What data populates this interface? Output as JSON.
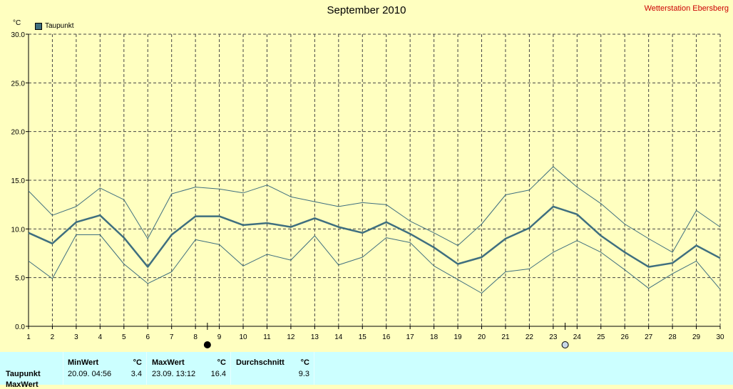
{
  "header": {
    "title": "September 2010",
    "station": "Wetterstation Ebersberg",
    "unit": "°C",
    "legend": "Taupunkt"
  },
  "chart_data": {
    "type": "line",
    "title": "September 2010",
    "ylabel": "°C",
    "ylim": [
      0,
      30
    ],
    "yticks": [
      "0.0",
      "5.0",
      "10.0",
      "15.0",
      "20.0",
      "25.0",
      "30.0"
    ],
    "x": [
      1,
      2,
      3,
      4,
      5,
      6,
      7,
      8,
      9,
      10,
      11,
      12,
      13,
      14,
      15,
      16,
      17,
      18,
      19,
      20,
      21,
      22,
      23,
      24,
      25,
      26,
      27,
      28,
      29,
      30
    ],
    "grid": true,
    "legend_position": "top-left",
    "series": [
      {
        "name": "Taupunkt",
        "role": "mean",
        "color": "#3f6f7f",
        "values": [
          9.6,
          8.5,
          10.7,
          11.4,
          9.1,
          6.1,
          9.4,
          11.3,
          11.3,
          10.4,
          10.6,
          10.2,
          11.1,
          10.2,
          9.6,
          10.7,
          9.5,
          8.1,
          6.4,
          7.1,
          9.0,
          10.1,
          12.3,
          11.5,
          9.3,
          7.6,
          6.1,
          6.5,
          8.3,
          7.0
        ]
      },
      {
        "role": "max",
        "color": "#3f6f7f",
        "values": [
          13.9,
          11.4,
          12.3,
          14.2,
          13.0,
          9.0,
          13.6,
          14.3,
          14.1,
          13.7,
          14.5,
          13.3,
          12.8,
          12.3,
          12.7,
          12.5,
          10.8,
          9.6,
          8.3,
          10.5,
          13.5,
          14.0,
          16.4,
          14.3,
          12.6,
          10.5,
          9.0,
          7.6,
          11.9,
          10.2
        ]
      },
      {
        "role": "min",
        "color": "#3f6f7f",
        "values": [
          6.7,
          4.9,
          9.4,
          9.4,
          6.4,
          4.4,
          5.6,
          8.9,
          8.4,
          6.2,
          7.4,
          6.8,
          9.3,
          6.3,
          7.1,
          9.1,
          8.6,
          6.2,
          4.8,
          3.4,
          5.6,
          5.9,
          7.6,
          8.8,
          7.6,
          5.8,
          3.9,
          5.4,
          6.7,
          3.8
        ]
      }
    ],
    "moon_markers": [
      {
        "phase": "new",
        "after_day": 8
      },
      {
        "phase": "full",
        "after_day": 23
      }
    ]
  },
  "stats": {
    "row_label": "Taupunkt",
    "row_label_2": "MaxWert",
    "min_header": "MinWert",
    "min_unit": "°C",
    "min_time": "20.09.  04:56",
    "min_value": "3.4",
    "max_header": "MaxWert",
    "max_unit": "°C",
    "max_time": "23.09.  13:12",
    "max_value": "16.4",
    "avg_header": "Durchschnitt",
    "avg_unit": "°C",
    "avg_value": "9.3"
  },
  "colors": {
    "background": "#ffffc0",
    "line": "#3f6f7f",
    "grid": "#444444",
    "station": "#cc0000",
    "stats_bg": "#ccffff"
  }
}
